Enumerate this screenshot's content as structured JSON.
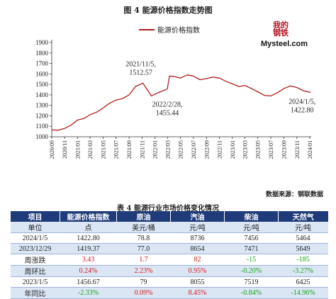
{
  "figure_title": "图 4  能源价格指数走势图",
  "logo": {
    "mark": "我的钢铁",
    "text": "Mysteel.com"
  },
  "source_note": "数据来源：钢联数据",
  "table_title": "表 4 能源行业市场价格变化情况",
  "colors": {
    "line": "#b31b1b",
    "header_bg": "#1f3b7a",
    "alt_row": "#dbe6f5",
    "up": "#d21a1a",
    "down": "#14a314"
  },
  "chart_data": {
    "type": "line",
    "title": "",
    "legend": "能源价格指数",
    "legend_position": "top-center",
    "ylim": [
      1000,
      1900
    ],
    "yticks": [
      1000,
      1100,
      1200,
      1300,
      1400,
      1500,
      1600,
      1700,
      1800,
      1900
    ],
    "x_start": "2020-09",
    "x_end": "2024-01",
    "xtick_labels": [
      "2020/09",
      "2020/11",
      "2021/01",
      "2021/03",
      "2021/05",
      "2021/07",
      "2021/09",
      "2021/11",
      "2022/01",
      "2022/03",
      "2022/05",
      "2022/07",
      "2022/09",
      "2022/11",
      "2023/01",
      "2023/03",
      "2023/05",
      "2023/07",
      "2023/09",
      "2023/11",
      "2024/01"
    ],
    "series": [
      {
        "name": "能源价格指数",
        "points": [
          [
            "2020-09-01",
            1065
          ],
          [
            "2020-10-01",
            1062
          ],
          [
            "2020-11-01",
            1080
          ],
          [
            "2020-12-01",
            1110
          ],
          [
            "2021-01-01",
            1160
          ],
          [
            "2021-02-01",
            1175
          ],
          [
            "2021-03-01",
            1210
          ],
          [
            "2021-04-01",
            1235
          ],
          [
            "2021-05-01",
            1275
          ],
          [
            "2021-06-01",
            1320
          ],
          [
            "2021-07-01",
            1350
          ],
          [
            "2021-08-01",
            1365
          ],
          [
            "2021-09-01",
            1400
          ],
          [
            "2021-10-01",
            1480
          ],
          [
            "2021-11-05",
            1512.57
          ],
          [
            "2021-11-25",
            1450
          ],
          [
            "2021-12-15",
            1390
          ],
          [
            "2022-01-15",
            1420
          ],
          [
            "2022-02-28",
            1455.44
          ],
          [
            "2022-03-10",
            1580
          ],
          [
            "2022-04-01",
            1575
          ],
          [
            "2022-05-01",
            1560
          ],
          [
            "2022-06-01",
            1590
          ],
          [
            "2022-07-01",
            1580
          ],
          [
            "2022-08-01",
            1545
          ],
          [
            "2022-09-01",
            1555
          ],
          [
            "2022-10-01",
            1570
          ],
          [
            "2022-11-01",
            1560
          ],
          [
            "2022-12-01",
            1530
          ],
          [
            "2023-01-01",
            1505
          ],
          [
            "2023-02-01",
            1480
          ],
          [
            "2023-03-01",
            1490
          ],
          [
            "2023-04-01",
            1460
          ],
          [
            "2023-05-01",
            1430
          ],
          [
            "2023-06-01",
            1395
          ],
          [
            "2023-07-01",
            1390
          ],
          [
            "2023-08-01",
            1420
          ],
          [
            "2023-09-01",
            1460
          ],
          [
            "2023-10-01",
            1485
          ],
          [
            "2023-11-01",
            1470
          ],
          [
            "2023-12-01",
            1440
          ],
          [
            "2024-01-05",
            1422.8
          ]
        ]
      }
    ],
    "annotations": [
      {
        "date": "2021-11-05",
        "line1": "2021/11/5,",
        "line2": "1512.57",
        "placement": "above"
      },
      {
        "date": "2022-02-28",
        "line1": "2022/2/28,",
        "line2": "1455.44",
        "placement": "below"
      },
      {
        "date": "2024-01-05",
        "line1": "2024/1/5,",
        "line2": "1422.80",
        "placement": "below-left"
      }
    ]
  },
  "table": {
    "headers": [
      "项目",
      "能源价格指数",
      "原油",
      "汽油",
      "柴油",
      "天然气"
    ],
    "rows": [
      {
        "cells": [
          "单位",
          "点",
          "美元/桶",
          "元/吨",
          "元/吨",
          "元/吨"
        ],
        "tones": [
          "",
          "",
          "",
          "",
          "",
          ""
        ]
      },
      {
        "cells": [
          "2024/1/5",
          "1422.80",
          "78.8",
          "8736",
          "7456",
          "5464"
        ],
        "tones": [
          "",
          "",
          "",
          "",
          "",
          ""
        ]
      },
      {
        "cells": [
          "2023/12/29",
          "1419.37",
          "77.0",
          "8654",
          "7471",
          "5649"
        ],
        "tones": [
          "",
          "",
          "",
          "",
          "",
          ""
        ]
      },
      {
        "cells": [
          "周涨跌",
          "3.43",
          "1.7",
          "82",
          "-15",
          "-185"
        ],
        "tones": [
          "",
          "red",
          "red",
          "red",
          "green",
          "green"
        ]
      },
      {
        "cells": [
          "周环比",
          "0.24%",
          "2.23%",
          "0.95%",
          "-0.20%",
          "-3.27%"
        ],
        "tones": [
          "",
          "red",
          "red",
          "red",
          "green",
          "green"
        ]
      },
      {
        "cells": [
          "2023/1/5",
          "1456.67",
          "79",
          "8055",
          "7519",
          "6425"
        ],
        "tones": [
          "",
          "",
          "",
          "",
          "",
          ""
        ]
      },
      {
        "cells": [
          "年同比",
          "-2.33%",
          "0.09%",
          "8.45%",
          "-0.84%",
          "-14.96%"
        ],
        "tones": [
          "",
          "green",
          "red",
          "red",
          "green",
          "green"
        ]
      }
    ]
  }
}
